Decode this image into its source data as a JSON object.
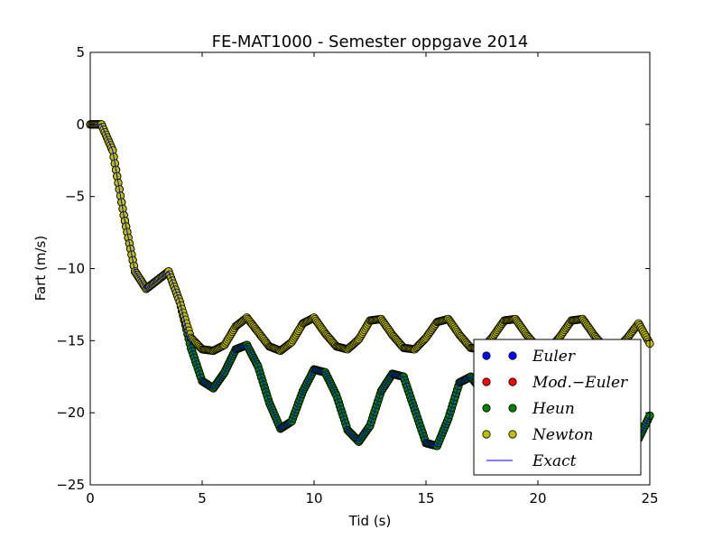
{
  "chart_data": {
    "type": "scatter",
    "title": "FE-MAT1000 - Semester oppgave 2014",
    "xlabel": "Tid (s)",
    "ylabel": "Fart (m/s)",
    "xlim": [
      0,
      25
    ],
    "ylim": [
      -25,
      5
    ],
    "x_ticks": [
      "0",
      "5",
      "10",
      "15",
      "20",
      "25"
    ],
    "y_ticks": [
      "5",
      "0",
      "−5",
      "−10",
      "−15",
      "−20",
      "−25"
    ],
    "grid": false,
    "legend_position": "lower right",
    "series": [
      {
        "name": "Euler",
        "label": "Euler",
        "marker": "circle",
        "color": "#0000ff",
        "x": [
          0,
          0.5,
          1,
          1.5,
          2,
          2.5,
          3,
          3.5,
          4,
          4.5,
          5,
          5.5,
          6,
          6.5,
          7,
          7.5,
          8,
          8.5,
          9,
          9.5,
          10,
          10.5,
          11,
          11.5,
          12,
          12.5,
          13,
          13.5,
          14,
          14.5,
          15,
          15.5,
          16,
          16.5,
          17,
          17.5,
          18,
          18.5,
          19,
          19.5,
          20,
          20.5,
          21,
          21.5,
          22,
          22.5,
          23,
          23.5,
          24,
          24.5,
          25
        ],
        "y": [
          0,
          0,
          -1.8,
          -6.3,
          -10.2,
          -11.4,
          -10.8,
          -10.2,
          -12.3,
          -15.5,
          -17.8,
          -18.3,
          -17.2,
          -15.6,
          -15.3,
          -16.8,
          -19.3,
          -21.1,
          -20.6,
          -18.5,
          -17,
          -17.2,
          -18.8,
          -21.2,
          -22,
          -20.9,
          -18.5,
          -17.3,
          -17.5,
          -19.8,
          -22.1,
          -22.3,
          -20.4,
          -17.9,
          -17.5,
          -18.5,
          -21.2,
          -22.4,
          -21.5,
          -19.3,
          -17.8,
          -18.2,
          -20.1,
          -22.3,
          -22.1,
          -20.1,
          -18.2,
          -18.2,
          -20,
          -21.8,
          -20.2
        ]
      },
      {
        "name": "Mod.−Euler",
        "label": "Mod.−Euler",
        "marker": "circle",
        "color": "#ff0000",
        "x": [
          0,
          0.5,
          1,
          1.5,
          2,
          2.5,
          3,
          3.5,
          4,
          4.5,
          5,
          5.5,
          6,
          6.5,
          7,
          7.5,
          8,
          8.5,
          9,
          9.5,
          10,
          10.5,
          11,
          11.5,
          12,
          12.5,
          13,
          13.5,
          14,
          14.5,
          15,
          15.5,
          16,
          16.5,
          17,
          17.5,
          18,
          18.5,
          19,
          19.5,
          20,
          20.5,
          21,
          21.5,
          22,
          22.5,
          23,
          23.5,
          24,
          24.5,
          25
        ],
        "y": [
          0,
          0,
          -1.8,
          -6.3,
          -10.2,
          -11.4,
          -10.8,
          -10.2,
          -12.3,
          -15.5,
          -17.8,
          -18.3,
          -17.2,
          -15.6,
          -15.3,
          -16.8,
          -19.3,
          -21.1,
          -20.6,
          -18.5,
          -17,
          -17.2,
          -18.8,
          -21.2,
          -22,
          -20.9,
          -18.5,
          -17.3,
          -17.5,
          -19.8,
          -22.1,
          -22.3,
          -20.4,
          -17.9,
          -17.5,
          -18.5,
          -21.2,
          -22.4,
          -21.5,
          -19.3,
          -17.8,
          -18.2,
          -20.1,
          -22.3,
          -22.1,
          -20.1,
          -18.2,
          -18.2,
          -20,
          -21.8,
          -20.2
        ]
      },
      {
        "name": "Heun",
        "label": "Heun",
        "marker": "circle",
        "color": "#008000",
        "x": [
          0,
          0.5,
          1,
          1.5,
          2,
          2.5,
          3,
          3.5,
          4,
          4.5,
          5,
          5.5,
          6,
          6.5,
          7,
          7.5,
          8,
          8.5,
          9,
          9.5,
          10,
          10.5,
          11,
          11.5,
          12,
          12.5,
          13,
          13.5,
          14,
          14.5,
          15,
          15.5,
          16,
          16.5,
          17,
          17.5,
          18,
          18.5,
          19,
          19.5,
          20,
          20.5,
          21,
          21.5,
          22,
          22.5,
          23,
          23.5,
          24,
          24.5,
          25
        ],
        "y": [
          0,
          0,
          -1.8,
          -6.3,
          -10.2,
          -11.4,
          -10.8,
          -10.2,
          -12.3,
          -15.5,
          -17.8,
          -18.3,
          -17.2,
          -15.6,
          -15.3,
          -16.8,
          -19.3,
          -21.1,
          -20.6,
          -18.5,
          -17,
          -17.2,
          -18.8,
          -21.2,
          -22,
          -20.9,
          -18.5,
          -17.3,
          -17.5,
          -19.8,
          -22.1,
          -22.3,
          -20.4,
          -17.9,
          -17.5,
          -18.5,
          -21.2,
          -22.4,
          -21.5,
          -19.3,
          -17.8,
          -18.2,
          -20.1,
          -22.3,
          -22.1,
          -20.1,
          -18.2,
          -18.2,
          -20,
          -21.8,
          -20.2
        ]
      },
      {
        "name": "Newton",
        "label": "Newton",
        "marker": "circle",
        "color": "#bfbf00",
        "x": [
          0,
          0.5,
          1,
          1.5,
          2,
          2.5,
          3,
          3.5,
          4,
          4.5,
          5,
          5.5,
          6,
          6.5,
          7,
          7.5,
          8,
          8.5,
          9,
          9.5,
          10,
          10.5,
          11,
          11.5,
          12,
          12.5,
          13,
          13.5,
          14,
          14.5,
          15,
          15.5,
          16,
          16.5,
          17,
          17.5,
          18,
          18.5,
          19,
          19.5,
          20,
          20.5,
          21,
          21.5,
          22,
          22.5,
          23,
          23.5,
          24,
          24.5,
          25
        ],
        "y": [
          0,
          0,
          -1.8,
          -6.3,
          -10.2,
          -11.4,
          -10.8,
          -10.2,
          -12.3,
          -14.8,
          -15.6,
          -15.7,
          -15.3,
          -14,
          -13.4,
          -14.4,
          -15.4,
          -15.7,
          -15.1,
          -13.8,
          -13.4,
          -14.5,
          -15.4,
          -15.6,
          -14.9,
          -13.6,
          -13.5,
          -14.6,
          -15.5,
          -15.6,
          -14.8,
          -13.7,
          -13.5,
          -14.6,
          -15.5,
          -15.6,
          -14.7,
          -13.6,
          -13.5,
          -14.6,
          -15.5,
          -15.6,
          -14.7,
          -13.6,
          -13.5,
          -14.6,
          -15.5,
          -15.6,
          -14.8,
          -13.8,
          -15.2
        ]
      },
      {
        "name": "Exact",
        "label": "Exact",
        "marker": "line",
        "color": "#0000ff",
        "x": [
          0,
          0.5,
          1,
          1.5,
          2,
          2.5,
          3,
          3.5,
          4,
          4.5,
          5,
          5.5,
          6,
          6.5,
          7,
          7.5,
          8,
          8.5,
          9,
          9.5,
          10,
          10.5,
          11,
          11.5,
          12,
          12.5,
          13,
          13.5,
          14,
          14.5,
          15,
          15.5,
          16,
          16.5,
          17,
          17.5,
          18,
          18.5,
          19,
          19.5,
          20,
          20.5,
          21,
          21.5,
          22,
          22.5,
          23,
          23.5,
          24,
          24.5,
          25
        ],
        "y": [
          0,
          0,
          -1.8,
          -6.3,
          -10.2,
          -11.4,
          -10.8,
          -10.2,
          -12.3,
          -15.5,
          -17.8,
          -18.3,
          -17.2,
          -15.6,
          -15.3,
          -16.8,
          -19.3,
          -21.1,
          -20.6,
          -18.5,
          -17,
          -17.2,
          -18.8,
          -21.2,
          -22,
          -20.9,
          -18.5,
          -17.3,
          -17.5,
          -19.8,
          -22.1,
          -22.3,
          -20.4,
          -17.9,
          -17.5,
          -18.5,
          -21.2,
          -22.4,
          -21.5,
          -19.3,
          -17.8,
          -18.2,
          -20.1,
          -22.3,
          -22.1,
          -20.1,
          -18.2,
          -18.2,
          -20,
          -21.8,
          -20.2
        ]
      }
    ]
  }
}
